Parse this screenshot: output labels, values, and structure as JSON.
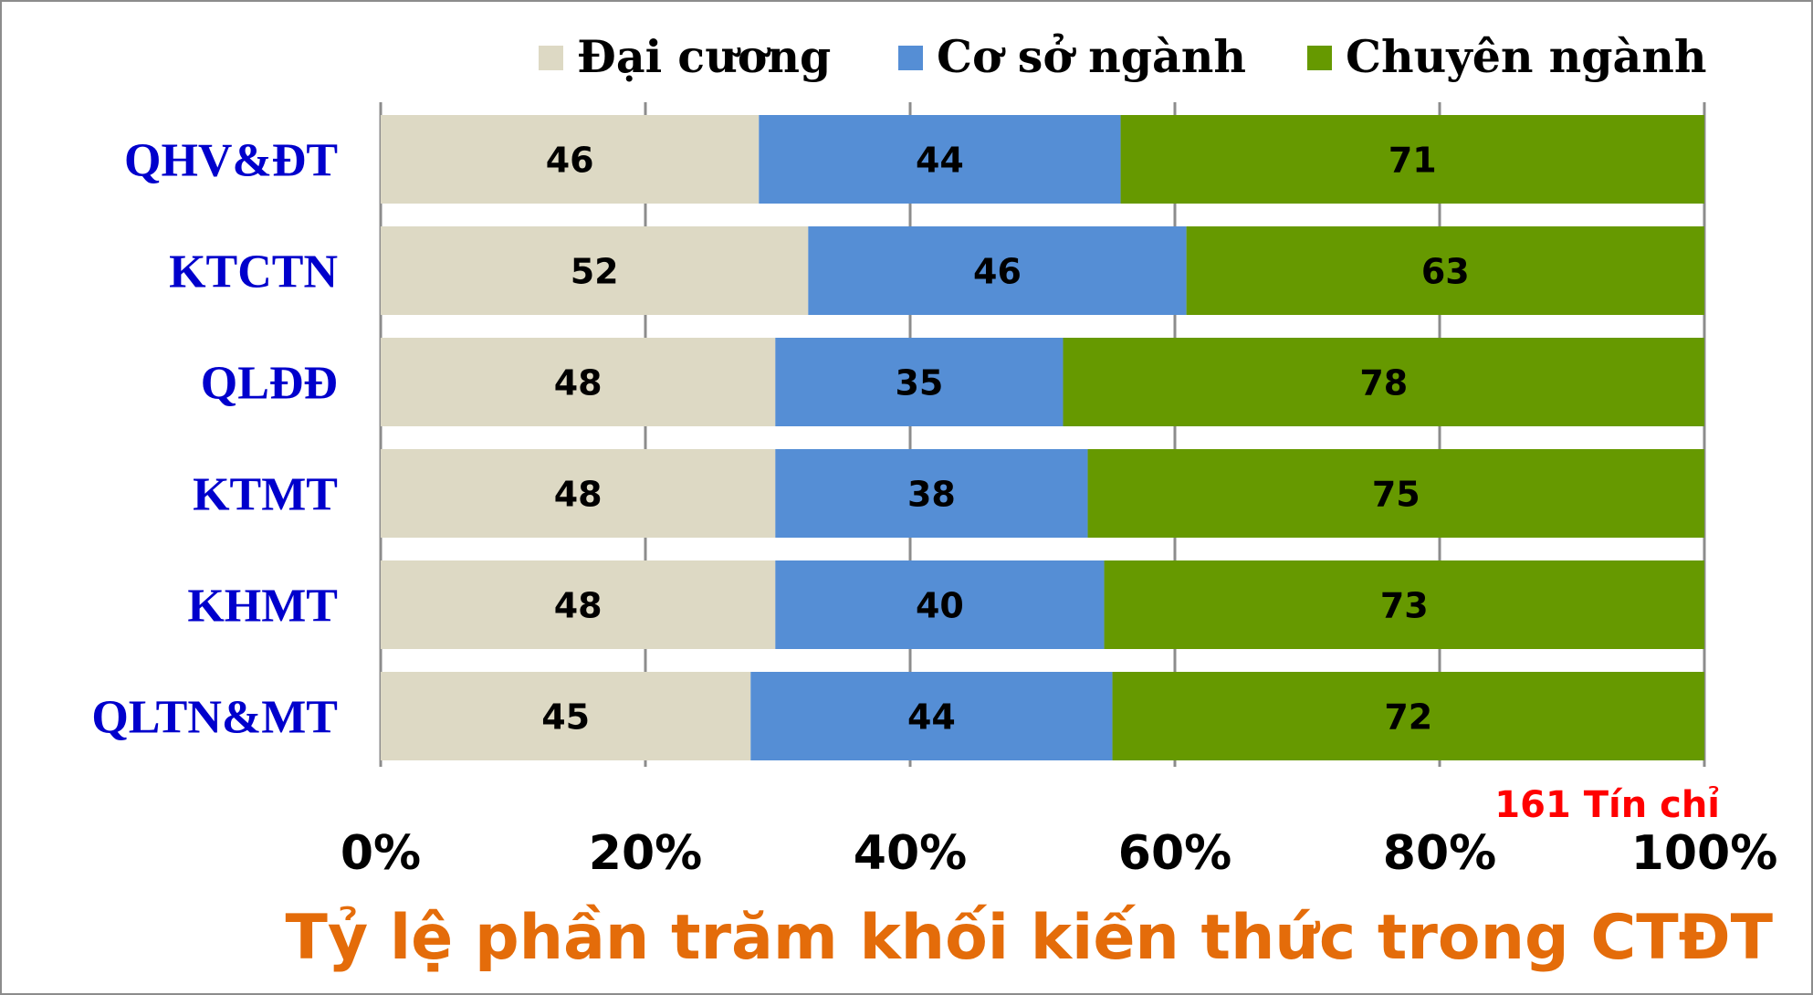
{
  "chart_data": {
    "type": "bar",
    "orientation": "horizontal",
    "stacked": "percent",
    "title": "Tỷ lệ phần trăm khối kiến thức trong CTĐT",
    "annotation": "161 Tín chỉ",
    "categories": [
      "QHV&ĐT",
      "KTCTN",
      "QLĐĐ",
      "KTMT",
      "KHMT",
      "QLTN&MT"
    ],
    "series": [
      {
        "name": "Đại cương",
        "color": "#DDD9C4",
        "values": [
          46,
          52,
          48,
          48,
          48,
          45
        ]
      },
      {
        "name": "Cơ sở ngành",
        "color": "#558ED5",
        "values": [
          44,
          46,
          35,
          38,
          40,
          44
        ]
      },
      {
        "name": "Chuyên ngành",
        "color": "#669900",
        "values": [
          71,
          63,
          78,
          75,
          73,
          72
        ]
      }
    ],
    "x_ticks": [
      "0%",
      "20%",
      "40%",
      "60%",
      "80%",
      "100%"
    ],
    "xlim": [
      0,
      100
    ],
    "grid": true,
    "legend_position": "top",
    "category_label_color": "#0000CC",
    "title_color": "#E46C0A",
    "annotation_color": "#FF0000",
    "grid_color": "#8C8C8C"
  }
}
